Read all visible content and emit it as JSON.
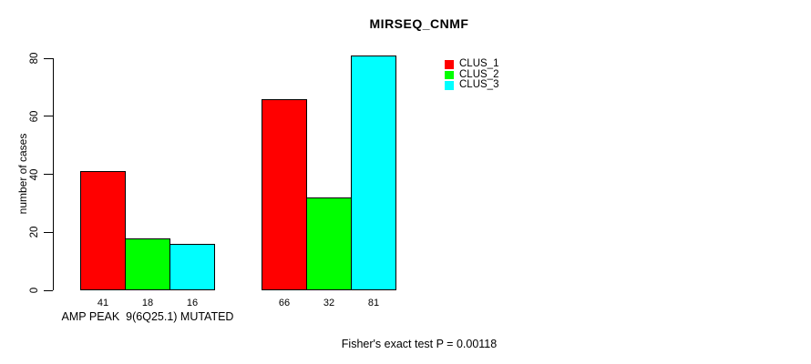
{
  "chart_data": {
    "type": "bar",
    "title": "MIRSEQ_CNMF",
    "ylabel": "number of cases",
    "xlabel": "",
    "footer": "Fisher's exact test P = 0.00118",
    "ylim": [
      0,
      80
    ],
    "yticks": [
      0,
      20,
      40,
      60,
      80
    ],
    "grid": false,
    "legend_position": "top-right",
    "series": [
      {
        "name": "CLUS_1",
        "color": "#FF0000"
      },
      {
        "name": "CLUS_2",
        "color": "#00FF00"
      },
      {
        "name": "CLUS_3",
        "color": "#00FFFF"
      }
    ],
    "groups": [
      {
        "label": "AMP PEAK  9(6Q25.1) MUTATED",
        "values": [
          41,
          18,
          16
        ]
      },
      {
        "label": "",
        "values": [
          66,
          32,
          81
        ]
      }
    ]
  }
}
